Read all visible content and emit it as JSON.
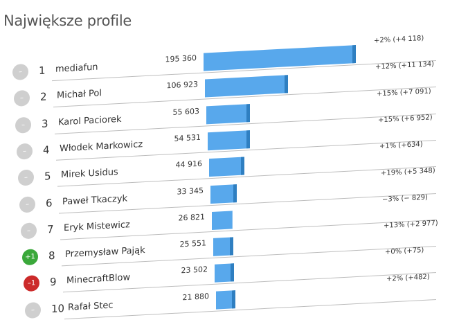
{
  "title": "Największe profile",
  "chart_data": {
    "type": "bar",
    "orientation": "horizontal",
    "title": "Największe profile",
    "categories": [
      "mediafun",
      "Michał Pol",
      "Karol Paciorek",
      "Włodek Markowicz",
      "Mirek Usidus",
      "Paweł Tkaczyk",
      "Eryk Mistewicz",
      "Przemysław Pająk",
      "MinecraftBlow",
      "Rafał Stec"
    ],
    "values": [
      195360,
      106923,
      55603,
      54531,
      44916,
      33345,
      26821,
      25551,
      23502,
      21880
    ],
    "value_labels": [
      "195 360",
      "106 923",
      "55 603",
      "54 531",
      "44 916",
      "33 345",
      "26 821",
      "25 551",
      "23 502",
      "21 880"
    ],
    "ranks": [
      "1",
      "2",
      "3",
      "4",
      "5",
      "6",
      "7",
      "8",
      "9",
      "10"
    ],
    "rank_changes": [
      "–",
      "–",
      "–",
      "–",
      "–",
      "–",
      "–",
      "+1",
      "–1",
      "–"
    ],
    "growth_labels": [
      "+2% (+4 118)",
      "+12% (+11 134)",
      "+15% (+7 091)",
      "+15% (+6 952)",
      "+1% (+634)",
      "+19% (+5 348)",
      "−3% (− 829)",
      "+13% (+2 977)",
      "+0% (+75)",
      "+2% (+482)"
    ],
    "colors": {
      "bar": "#58a8ec",
      "growth_segment": "#2f7fc1",
      "badge_neutral": "#cfcfcf",
      "badge_up": "#3aa83a",
      "badge_down": "#cc2a2a"
    }
  }
}
